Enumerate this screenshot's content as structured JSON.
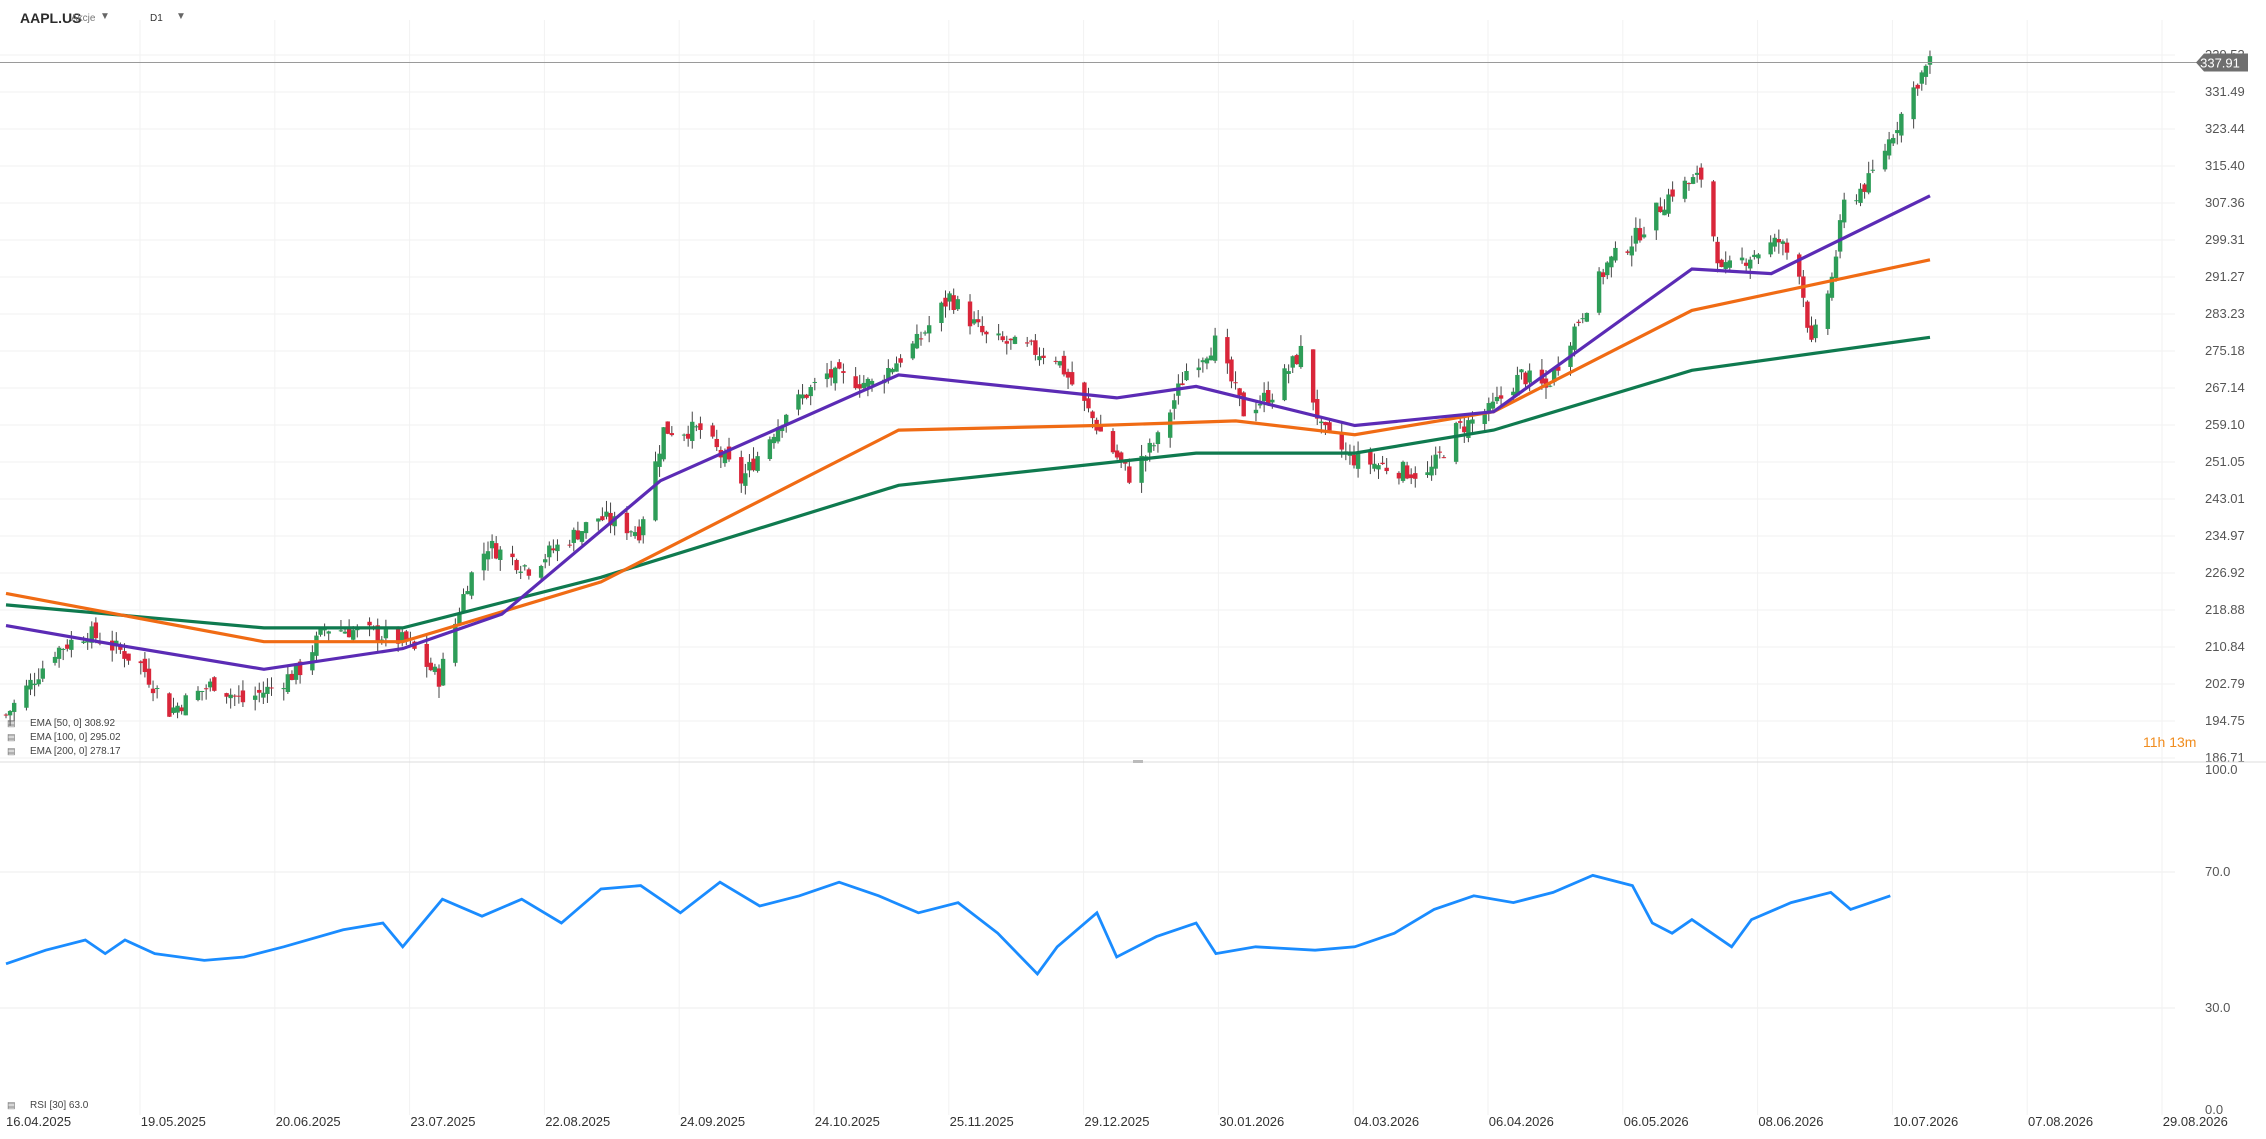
{
  "header": {
    "symbol": "AAPL.US",
    "instrument_type": "Akcje",
    "timeframe": "D1"
  },
  "colors": {
    "up": "#2e9d58",
    "down": "#d9263a",
    "ema50": "#5b2bb5",
    "ema100": "#f06b14",
    "ema200": "#0f7a4f",
    "rsi": "#1a8cff",
    "price_tag": "#6f6f6f"
  },
  "indicators": {
    "ema50_label": "EMA [50, 0] 308.92",
    "ema100_label": "EMA [100, 0] 295.02",
    "ema200_label": "EMA [200, 0] 278.17",
    "rsi_label": "RSI [30] 63.0"
  },
  "current_price": {
    "value": 337.91,
    "label": "337.91"
  },
  "countdown": "11h 13m",
  "chart_data": {
    "type": "candlestick",
    "price_axis": {
      "ticks": [
        "339.53",
        "331.49",
        "323.44",
        "315.40",
        "307.36",
        "299.31",
        "291.27",
        "283.23",
        "275.18",
        "267.14",
        "259.10",
        "251.05",
        "243.01",
        "234.97",
        "226.92",
        "218.88",
        "210.84",
        "202.79",
        "194.75",
        "186.71"
      ],
      "range": [
        186.71,
        339.53
      ]
    },
    "rsi_axis": {
      "ticks": [
        "100.0",
        "70.0",
        "30.0",
        "0.0"
      ],
      "range": [
        0,
        100
      ]
    },
    "dates": [
      "16.04.2025",
      "19.05.2025",
      "20.06.2025",
      "23.07.2025",
      "22.08.2025",
      "24.09.2025",
      "24.10.2025",
      "25.11.2025",
      "29.12.2025",
      "30.01.2026",
      "04.03.2026",
      "06.04.2026",
      "06.05.2026",
      "08.06.2026",
      "10.07.2026",
      "07.08.2026",
      "29.08.2026"
    ],
    "close_anchors": [
      [
        "16.04.2025",
        196
      ],
      [
        "28.04.2025",
        210
      ],
      [
        "06.05.2025",
        214
      ],
      [
        "14.05.2025",
        210
      ],
      [
        "19.05.2025",
        207
      ],
      [
        "26.05.2025",
        197
      ],
      [
        "06.06.2025",
        203
      ],
      [
        "13.06.2025",
        199
      ],
      [
        "20.06.2025",
        202
      ],
      [
        "27.06.2025",
        206
      ],
      [
        "03.07.2025",
        215
      ],
      [
        "14.07.2025",
        214
      ],
      [
        "23.07.2025",
        212
      ],
      [
        "31.07.2025",
        204
      ],
      [
        "07.08.2025",
        225
      ],
      [
        "12.08.2025",
        233
      ],
      [
        "22.08.2025",
        228
      ],
      [
        "28.08.2025",
        232
      ],
      [
        "08.09.2025",
        239
      ],
      [
        "18.09.2025",
        236
      ],
      [
        "24.09.2025",
        258
      ],
      [
        "03.10.2025",
        258
      ],
      [
        "13.10.2025",
        247
      ],
      [
        "24.10.2025",
        262
      ],
      [
        "03.11.2025",
        270
      ],
      [
        "14.11.2025",
        268
      ],
      [
        "25.11.2025",
        277
      ],
      [
        "03.12.2025",
        287
      ],
      [
        "12.12.2025",
        278
      ],
      [
        "29.12.2025",
        274
      ],
      [
        "08.01.2026",
        259
      ],
      [
        "16.01.2026",
        248
      ],
      [
        "23.01.2026",
        256
      ],
      [
        "30.01.2026",
        271
      ],
      [
        "06.02.2026",
        277
      ],
      [
        "13.02.2026",
        262
      ],
      [
        "20.02.2026",
        266
      ],
      [
        "27.02.2026",
        275
      ],
      [
        "04.03.2026",
        258
      ],
      [
        "11.03.2026",
        252
      ],
      [
        "20.03.2026",
        250
      ],
      [
        "30.03.2026",
        248
      ],
      [
        "06.04.2026",
        258
      ],
      [
        "14.04.2026",
        262
      ],
      [
        "22.04.2026",
        270
      ],
      [
        "28.04.2026",
        267
      ],
      [
        "06.05.2026",
        282
      ],
      [
        "13.05.2026",
        294
      ],
      [
        "20.05.2026",
        300
      ],
      [
        "29.05.2026",
        310
      ],
      [
        "05.06.2026",
        313
      ],
      [
        "10.06.2026",
        292
      ],
      [
        "17.06.2026",
        296
      ],
      [
        "24.06.2026",
        299
      ],
      [
        "29.06.2026",
        293
      ],
      [
        "02.07.2026",
        276
      ],
      [
        "07.07.2026",
        291
      ],
      [
        "10.07.2026",
        307
      ],
      [
        "16.07.2026",
        312
      ],
      [
        "21.07.2026",
        321
      ],
      [
        "28.07.2026",
        334
      ],
      [
        "31.07.2026",
        337.91
      ]
    ],
    "ema50": [
      [
        0,
        215.5
      ],
      [
        0.06,
        211
      ],
      [
        0.13,
        206
      ],
      [
        0.2,
        210.5
      ],
      [
        0.25,
        218
      ],
      [
        0.33,
        247
      ],
      [
        0.45,
        270
      ],
      [
        0.56,
        265
      ],
      [
        0.6,
        267.5
      ],
      [
        0.68,
        259
      ],
      [
        0.75,
        262
      ],
      [
        0.85,
        293
      ],
      [
        0.89,
        292
      ],
      [
        0.97,
        308.92
      ]
    ],
    "ema100": [
      [
        0,
        222.5
      ],
      [
        0.13,
        212
      ],
      [
        0.2,
        212
      ],
      [
        0.3,
        225
      ],
      [
        0.45,
        258
      ],
      [
        0.55,
        259
      ],
      [
        0.62,
        260
      ],
      [
        0.68,
        257
      ],
      [
        0.75,
        262
      ],
      [
        0.85,
        284
      ],
      [
        0.97,
        295.02
      ]
    ],
    "ema200": [
      [
        0,
        220
      ],
      [
        0.13,
        215
      ],
      [
        0.2,
        215
      ],
      [
        0.3,
        226
      ],
      [
        0.45,
        246
      ],
      [
        0.6,
        253
      ],
      [
        0.68,
        253
      ],
      [
        0.75,
        258
      ],
      [
        0.85,
        271
      ],
      [
        0.97,
        278.17
      ]
    ],
    "rsi": [
      [
        0,
        43
      ],
      [
        0.02,
        47
      ],
      [
        0.04,
        50
      ],
      [
        0.05,
        46
      ],
      [
        0.06,
        50
      ],
      [
        0.075,
        46
      ],
      [
        0.1,
        44
      ],
      [
        0.12,
        45
      ],
      [
        0.14,
        48
      ],
      [
        0.17,
        53
      ],
      [
        0.19,
        55
      ],
      [
        0.2,
        48
      ],
      [
        0.22,
        62
      ],
      [
        0.24,
        57
      ],
      [
        0.26,
        62
      ],
      [
        0.28,
        55
      ],
      [
        0.3,
        65
      ],
      [
        0.32,
        66
      ],
      [
        0.34,
        58
      ],
      [
        0.36,
        67
      ],
      [
        0.38,
        60
      ],
      [
        0.4,
        63
      ],
      [
        0.42,
        67
      ],
      [
        0.44,
        63
      ],
      [
        0.46,
        58
      ],
      [
        0.48,
        61
      ],
      [
        0.5,
        52
      ],
      [
        0.52,
        40
      ],
      [
        0.53,
        48
      ],
      [
        0.55,
        58
      ],
      [
        0.56,
        45
      ],
      [
        0.58,
        51
      ],
      [
        0.6,
        55
      ],
      [
        0.61,
        46
      ],
      [
        0.63,
        48
      ],
      [
        0.66,
        47
      ],
      [
        0.68,
        48
      ],
      [
        0.7,
        52
      ],
      [
        0.72,
        59
      ],
      [
        0.74,
        63
      ],
      [
        0.76,
        61
      ],
      [
        0.78,
        64
      ],
      [
        0.8,
        69
      ],
      [
        0.82,
        66
      ],
      [
        0.83,
        55
      ],
      [
        0.84,
        52
      ],
      [
        0.85,
        56
      ],
      [
        0.86,
        52
      ],
      [
        0.87,
        48
      ],
      [
        0.88,
        56
      ],
      [
        0.9,
        61
      ],
      [
        0.92,
        64
      ],
      [
        0.93,
        59
      ],
      [
        0.95,
        63
      ]
    ]
  }
}
